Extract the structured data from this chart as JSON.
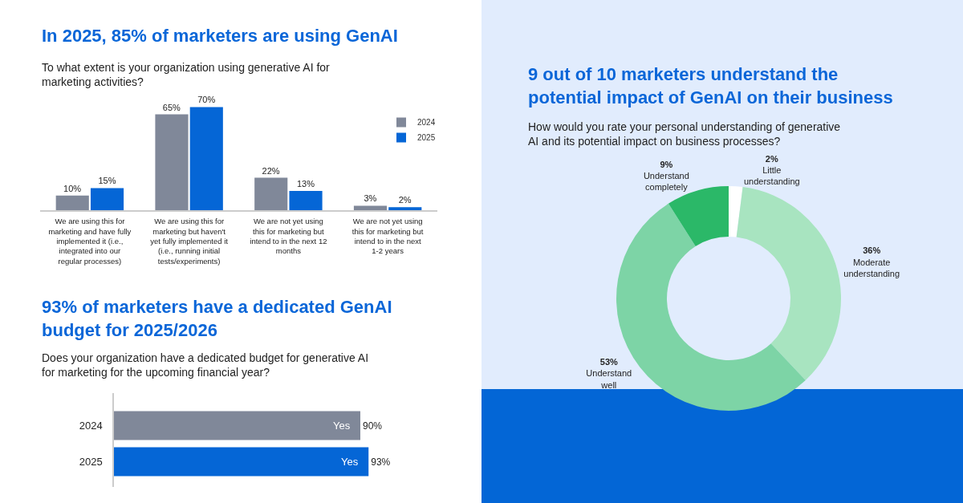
{
  "chart_data": [
    {
      "type": "bar",
      "title": "In 2025, 85% of marketers are using GenAI",
      "subtitle": "To what extent is your organization using generative AI for marketing activities?",
      "categories": [
        "We are using this for marketing and have fully implemented it (i.e., integrated into our regular processes)",
        "We are using this for marketing but haven't yet fully implemented it (i.e., running initial tests/experiments)",
        "We are not yet using this for marketing but intend to in the next 12 months",
        "We are not yet using this for marketing but intend to in the next 1-2 years"
      ],
      "series": [
        {
          "name": "2024",
          "color": "#808899",
          "values": [
            10,
            65,
            22,
            3
          ],
          "value_labels": [
            "10%",
            "65%",
            "22%",
            "3%"
          ]
        },
        {
          "name": "2025",
          "color": "#0566d6",
          "values": [
            15,
            70,
            13,
            2
          ],
          "value_labels": [
            "15%",
            "70%",
            "13%",
            "2%"
          ]
        }
      ],
      "legend": "top right"
    },
    {
      "type": "bar",
      "orientation": "horizontal",
      "title": "93% of marketers have a dedicated GenAI budget for 2025/2026",
      "subtitle": "Does your organization have a dedicated budget for generative AI for marketing for the upcoming financial year?",
      "categories": [
        "2024",
        "2025"
      ],
      "series": [
        {
          "name": "Yes",
          "colors": [
            "#808899",
            "#0566d6"
          ],
          "values": [
            90,
            93
          ],
          "value_labels": [
            "90%",
            "93%"
          ]
        }
      ]
    },
    {
      "type": "donut",
      "title": "9 out of 10 marketers understand the potential impact of GenAI on their business",
      "subtitle": "How would you rate your personal understanding of generative AI and its potential impact on business processes?",
      "categories": [
        "Little understanding",
        "Moderate understanding",
        "Understand well",
        "Understand completely"
      ],
      "values": [
        2,
        36,
        53,
        9
      ],
      "value_labels": [
        "2%",
        "36%",
        "53%",
        "9%"
      ],
      "colors": [
        "#ffffff",
        "#a8e4c0",
        "#7dd4a6",
        "#2bb868"
      ]
    }
  ]
}
